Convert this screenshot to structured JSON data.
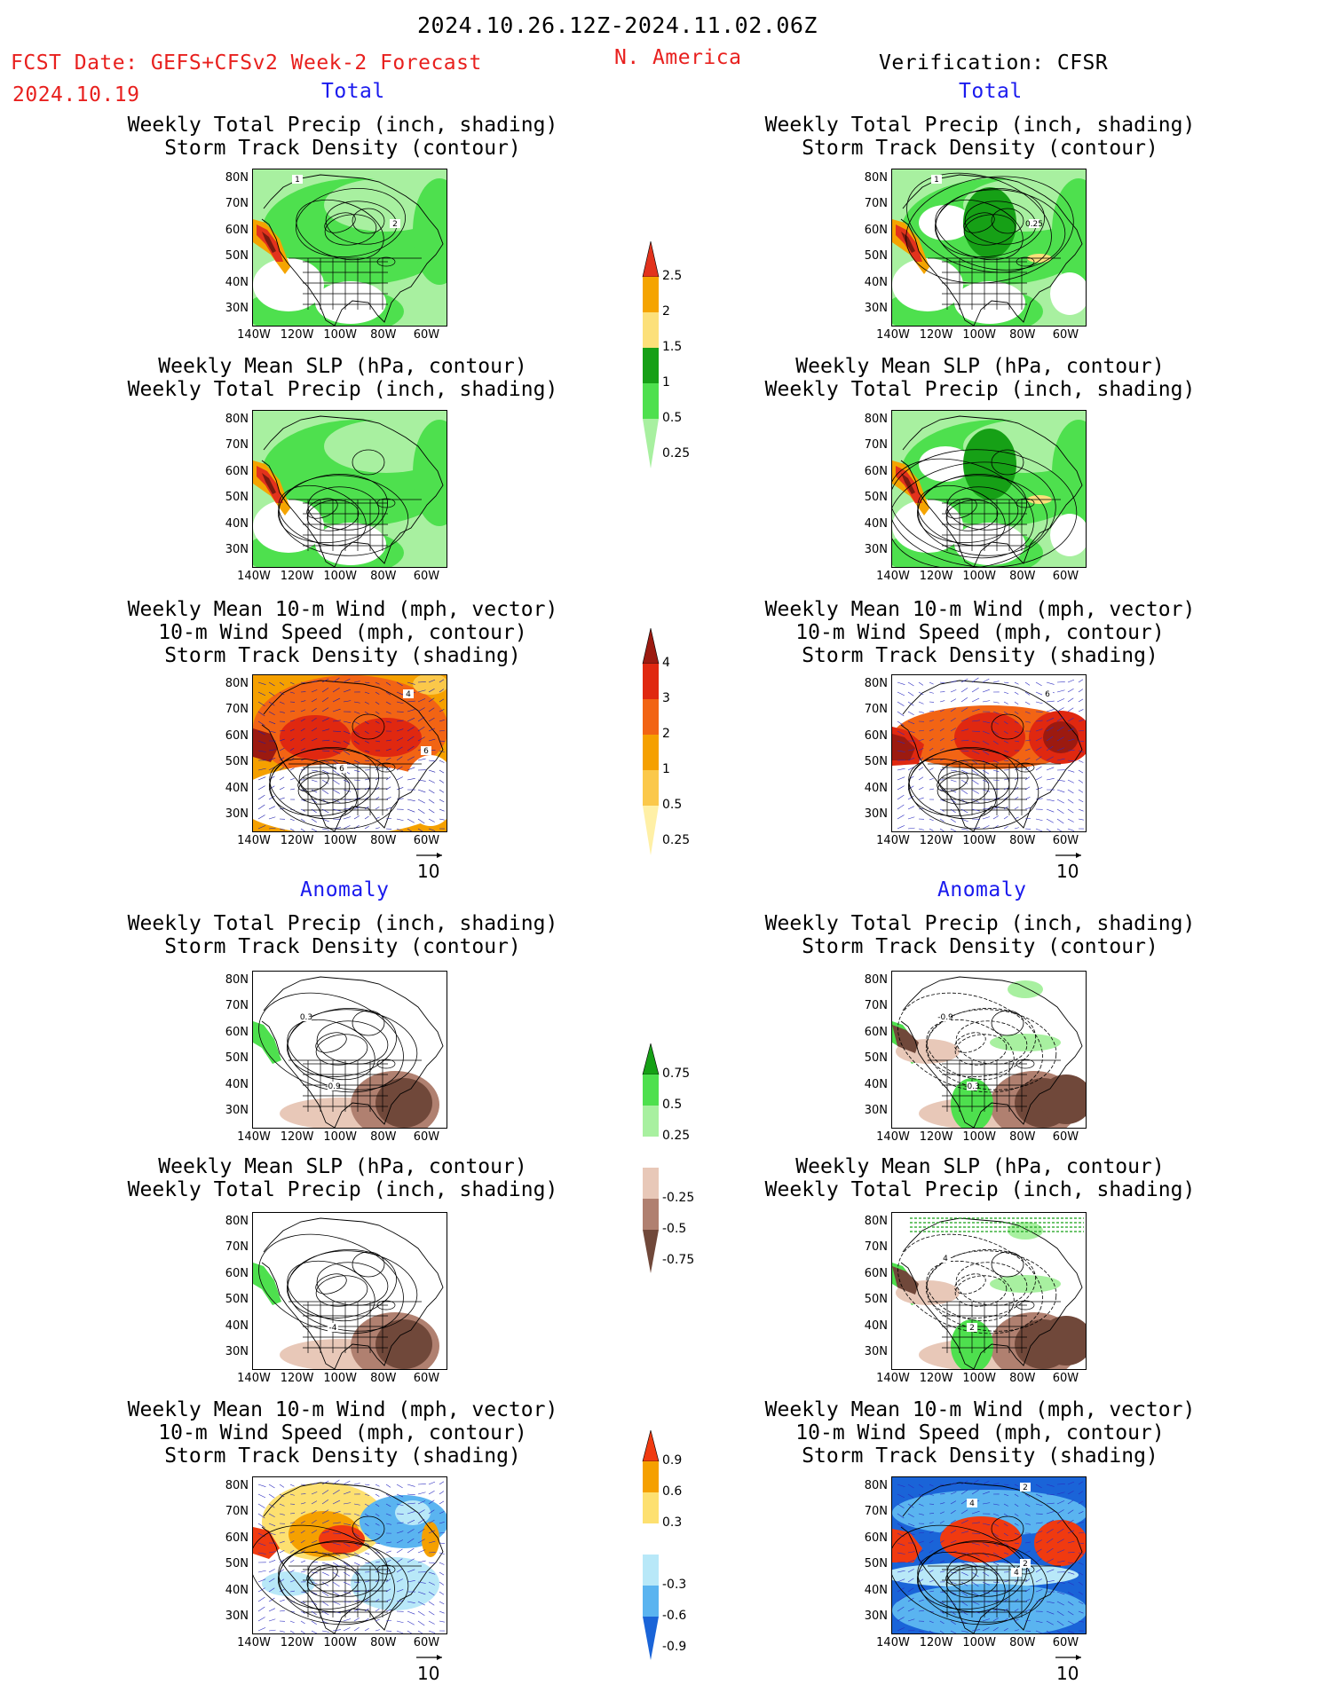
{
  "header": {
    "period": "2024.10.26.12Z-2024.11.02.06Z",
    "fcst_label": "FCST Date: GEFS+CFSv2 Week-2 Forecast",
    "fcst_date": "2024.10.19",
    "region": "N. America",
    "verification": "Verification: CFSR"
  },
  "sections": {
    "total": "Total",
    "anomaly": "Anomaly"
  },
  "titles": {
    "precip_storm": "Weekly Total Precip (inch, shading)\nStorm Track Density (contour)",
    "slp_precip": "Weekly Mean SLP (hPa, contour)\nWeekly Total Precip (inch, shading)",
    "wind_storm": "Weekly Mean 10-m Wind (mph, vector)\n10-m Wind Speed (mph, contour)\nStorm Track Density (shading)"
  },
  "axes": {
    "lat_labels": [
      "80N",
      "70N",
      "60N",
      "50N",
      "40N",
      "30N"
    ],
    "lon_labels": [
      "140W",
      "120W",
      "100W",
      "80W",
      "60W"
    ]
  },
  "vector_ref": "10",
  "colorbars": {
    "precip_total": {
      "labels": [
        "2.5",
        "2",
        "1.5",
        "1",
        "0.5",
        "0.25"
      ],
      "colors": [
        "#e2321c",
        "#f5a400",
        "#fce07a",
        "#16a016",
        "#4ee04e",
        "#a8f0a0"
      ]
    },
    "storm_total": {
      "labels": [
        "4",
        "3",
        "2",
        "1",
        "0.5",
        "0.25"
      ],
      "colors": [
        "#9c1a10",
        "#e02810",
        "#f26414",
        "#f5a000",
        "#fbc84a",
        "#fff0a6"
      ]
    },
    "precip_anom": {
      "labels": [
        "0.75",
        "0.5",
        "0.25",
        "-0.25",
        "-0.5",
        "-0.75"
      ],
      "colors": [
        "#16a016",
        "#4ee04e",
        "#a8f0a0",
        "#ffffff",
        "#e8c8b8",
        "#b08070",
        "#70483a"
      ]
    },
    "storm_anom": {
      "labels": [
        "0.9",
        "0.6",
        "0.3",
        "-0.3",
        "-0.6",
        "-0.9"
      ],
      "colors": [
        "#f03a10",
        "#f5a000",
        "#fde070",
        "#ffffff",
        "#b8e8f8",
        "#5ab4f0",
        "#1a64d8"
      ]
    }
  },
  "panel_annotations": {
    "fc_precip_total": [
      "1",
      "2"
    ],
    "vf_precip_total": [
      "1",
      "0.25"
    ],
    "fc_wind_total": [
      "4",
      "6",
      "6"
    ],
    "vf_wind_total": [
      "6"
    ],
    "fc_slp_anom": [
      "-0.9",
      "0.3"
    ],
    "vf_precip_anom": [
      "-0.3",
      "-0.9"
    ],
    "fc_slp_anom2": [
      "-4"
    ],
    "vf_slp_anom2": [
      "2",
      "4"
    ],
    "vf_wind_anom": [
      "2",
      "4",
      "2",
      "4"
    ]
  }
}
